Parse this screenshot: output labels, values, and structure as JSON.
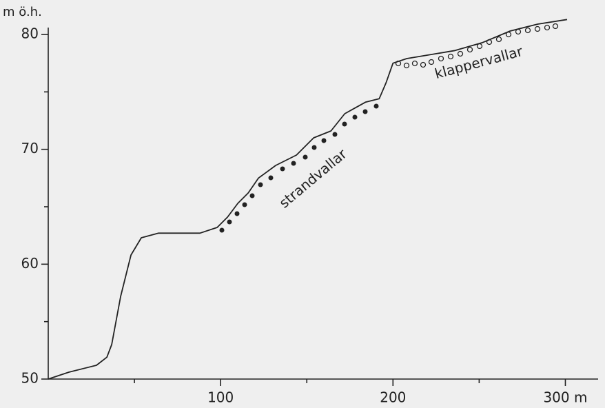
{
  "chart_data": {
    "type": "line",
    "y_label": "m ö.h.",
    "annotations": [
      "strandvallar",
      "klappervallar"
    ],
    "x": [
      0,
      12,
      28,
      34,
      36.8,
      42,
      48,
      54,
      64,
      88,
      98,
      104,
      110,
      116,
      122,
      132,
      144,
      154,
      164,
      172,
      184,
      192,
      196,
      200,
      208,
      220,
      236,
      252,
      268,
      284,
      301
    ],
    "series": [
      {
        "color": "#222222",
        "values": [
          50,
          50.6,
          51.2,
          51.9,
          53,
          57.2,
          60.8,
          62.3,
          62.7,
          62.7,
          63.2,
          64.1,
          65.3,
          66.2,
          67.5,
          68.6,
          69.5,
          71,
          71.6,
          73.1,
          74.1,
          74.4,
          75.8,
          77.5,
          77.9,
          78.2,
          78.6,
          79.3,
          80.3,
          80.9,
          81.3
        ]
      }
    ],
    "xlim": [
      0,
      319
    ],
    "ylim": [
      50,
      80.6
    ],
    "xticks": [
      100,
      200,
      {
        "value": 300,
        "label": "300 m"
      }
    ],
    "xminor_ticks": [
      50,
      150,
      250
    ],
    "yticks": [
      50,
      60,
      70,
      80
    ],
    "yminor_ticks": [
      55,
      65,
      75
    ],
    "grid": false
  }
}
